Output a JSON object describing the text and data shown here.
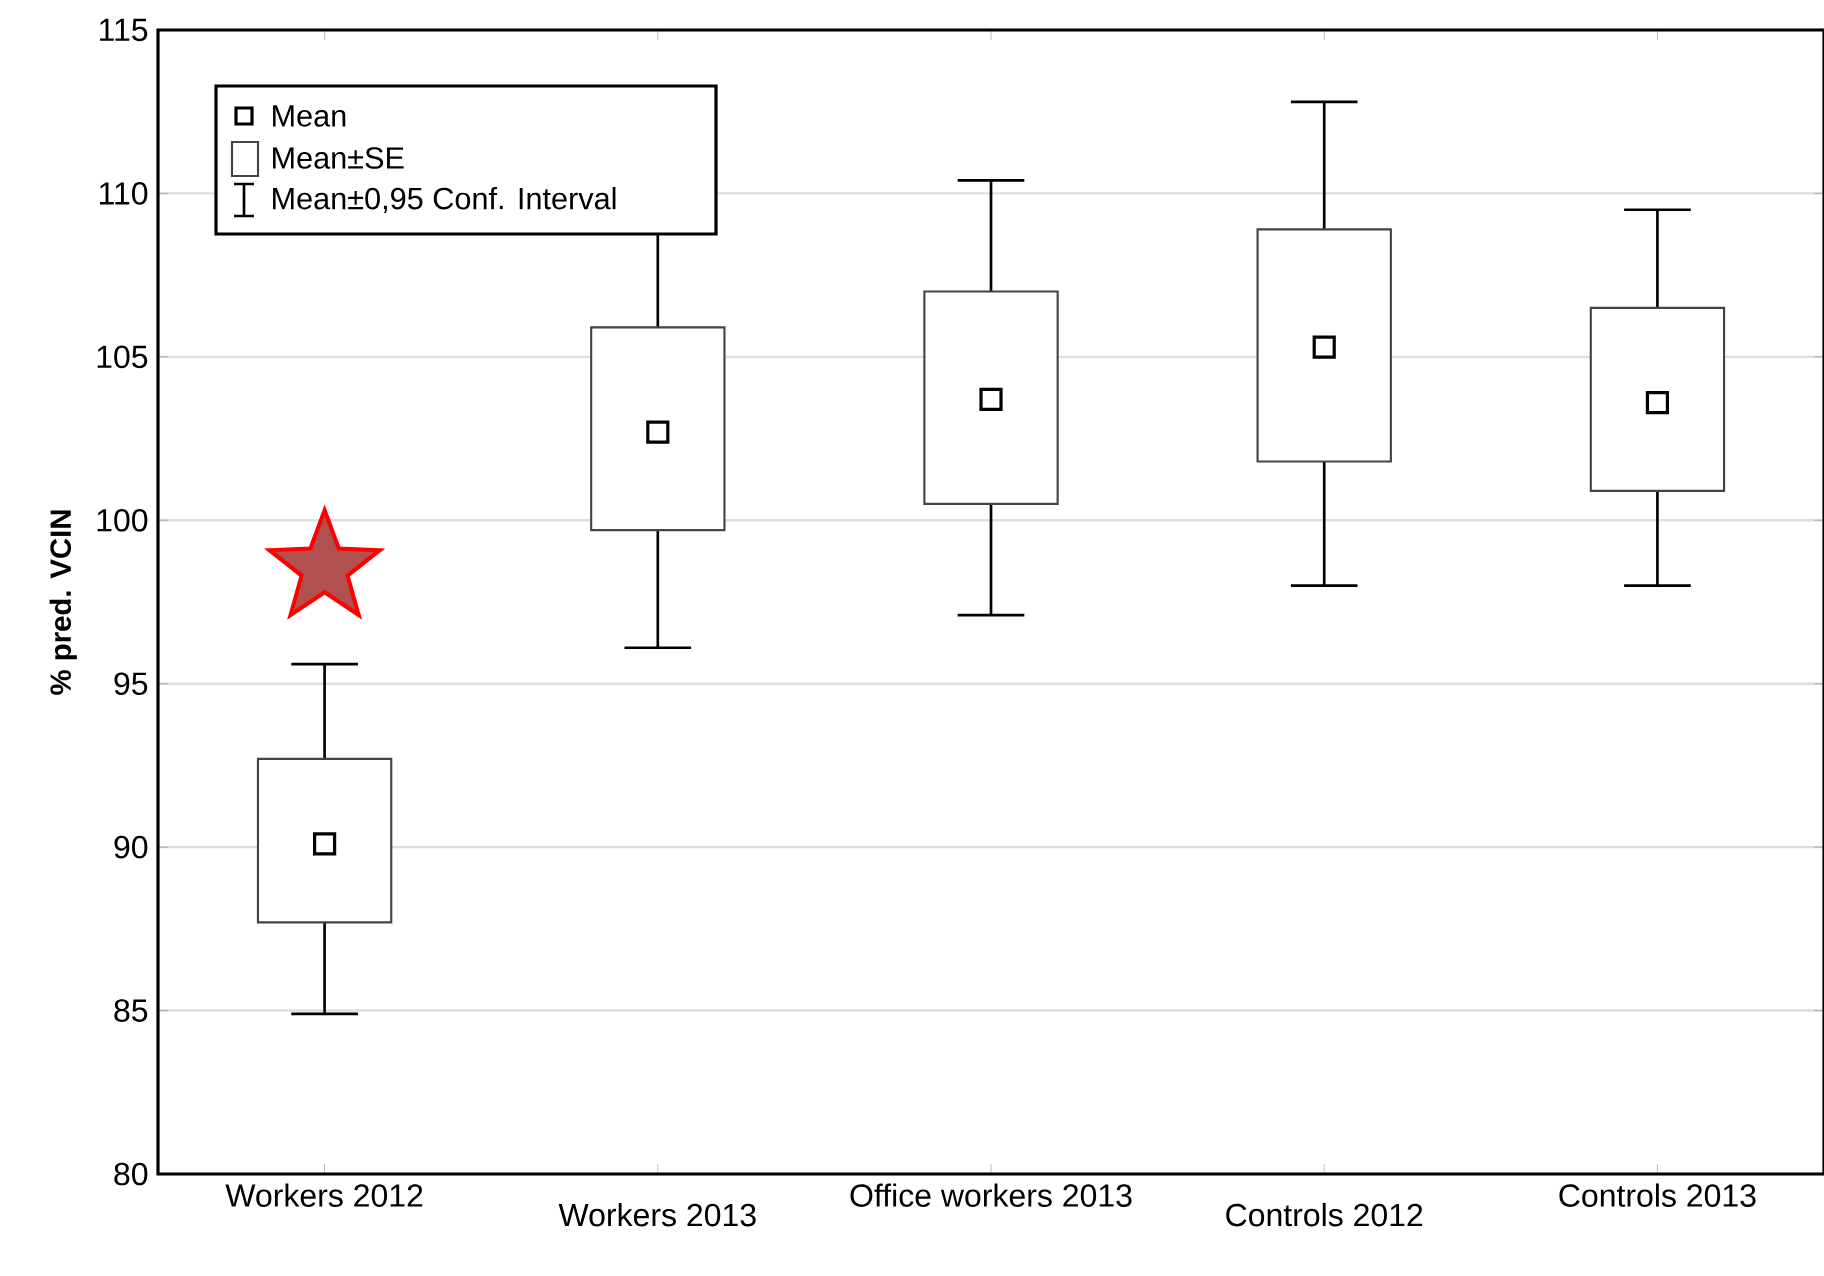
{
  "chart_data": {
    "type": "box",
    "ylabel": "% pred. VCIN",
    "categories": [
      "Workers 2012",
      "Workers 2013",
      "Office workers 2013",
      "Controls 2012",
      "Controls 2013"
    ],
    "boxes": [
      {
        "low": 84.9,
        "q1": 87.7,
        "median": 90.1,
        "q3": 92.7,
        "high": 95.6
      },
      {
        "low": 96.1,
        "q1": 99.7,
        "median": 102.7,
        "q3": 105.9,
        "high": 109.3
      },
      {
        "low": 97.1,
        "q1": 100.5,
        "median": 103.7,
        "q3": 107.0,
        "high": 110.4
      },
      {
        "low": 98.0,
        "q1": 101.8,
        "median": 105.3,
        "q3": 108.9,
        "high": 112.8
      },
      {
        "low": 98.0,
        "q1": 100.9,
        "median": 103.6,
        "q3": 106.5,
        "high": 109.5
      }
    ],
    "color": "#444444",
    "marker": "square",
    "ylim": [
      80,
      115
    ],
    "yticks": [
      80,
      85,
      90,
      95,
      100,
      105,
      110,
      115
    ],
    "grid": "y",
    "annotations": [
      "Mean",
      "Mean±SE",
      "Mean±0,95 Conf. Interval"
    ]
  }
}
